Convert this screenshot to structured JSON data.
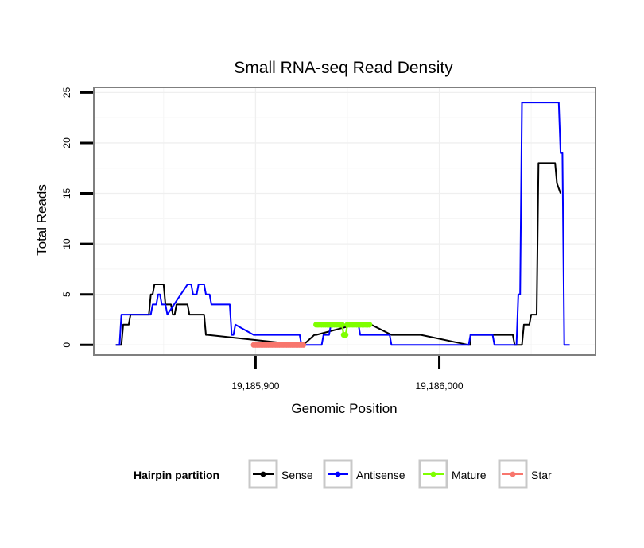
{
  "chart_data": {
    "type": "line",
    "title": "Small RNA-seq Read Density",
    "xlabel": "Genomic Position",
    "ylabel": "Total Reads",
    "xlim": [
      19185812,
      19186085
    ],
    "ylim": [
      -1,
      25.5
    ],
    "x_ticks": [
      19185900,
      19186000
    ],
    "x_tick_labels": [
      "19,185,900",
      "19,186,000"
    ],
    "y_ticks": [
      0,
      5,
      10,
      15,
      20,
      25
    ],
    "y_tick_labels": [
      "0",
      "5",
      "10",
      "15",
      "20",
      "25"
    ],
    "grid": true,
    "legend": {
      "title": "Hairpin partition",
      "position": "bottom",
      "entries": [
        "Sense",
        "Antisense",
        "Mature",
        "Star"
      ]
    },
    "series": [
      {
        "name": "Sense",
        "color": "#000000",
        "x": [
          19185824,
          19185827,
          19185828,
          19185831,
          19185832,
          19185837,
          19185838,
          19185842,
          19185843,
          19185844,
          19185845,
          19185850,
          19185851,
          19185854,
          19185855,
          19185856,
          19185857,
          19185863,
          19185864,
          19185870,
          19185871,
          19185872,
          19185873,
          19185874,
          19185925,
          19185926,
          19185932,
          19185933,
          19185954,
          19185955,
          19185962,
          19185963,
          19185974,
          19185975,
          19185989,
          19185990,
          19186016,
          19186017,
          19186017,
          19186040,
          19186041,
          19186045,
          19186046,
          19186049,
          19186050,
          19186053,
          19186054,
          19186063,
          19186064,
          19186066
        ],
        "y": [
          0,
          0,
          2,
          2,
          3,
          3,
          3,
          3,
          5,
          5,
          6,
          6,
          4,
          4,
          3,
          3,
          4,
          4,
          3,
          3,
          3,
          3,
          1,
          1,
          0,
          0,
          1,
          1,
          2,
          2,
          2,
          2,
          1,
          1,
          1,
          1,
          0,
          0,
          1,
          1,
          0,
          0,
          2,
          2,
          3,
          3,
          18,
          18,
          16,
          15
        ]
      },
      {
        "name": "Antisense",
        "color": "#0000ff",
        "x": [
          19185824,
          19185826,
          19185827,
          19185843,
          19185844,
          19185846,
          19185847,
          19185848,
          19185849,
          19185851,
          19185852,
          19185863,
          19185864,
          19185865,
          19185866,
          19185868,
          19185869,
          19185872,
          19185873,
          19185875,
          19185876,
          19185886,
          19185887,
          19185888,
          19185889,
          19185899,
          19185900,
          19185924,
          19185925,
          19185936,
          19185937,
          19185940,
          19185941,
          19185956,
          19185957,
          19185963,
          19185964,
          19185973,
          19185974,
          19186016,
          19186017,
          19186029,
          19186030,
          19186042,
          19186043,
          19186044,
          19186045,
          19186046,
          19186047,
          19186065,
          19186066,
          19186067,
          19186068,
          19186071
        ],
        "y": [
          0,
          0,
          3,
          3,
          4,
          4,
          5,
          5,
          4,
          4,
          3,
          6,
          6,
          6,
          5,
          5,
          6,
          6,
          5,
          5,
          4,
          4,
          1,
          1,
          2,
          1,
          1,
          1,
          0,
          0,
          1,
          1,
          2,
          2,
          1,
          1,
          1,
          1,
          0,
          0,
          1,
          1,
          0,
          0,
          5,
          5,
          24,
          24,
          24,
          24,
          19,
          19,
          0,
          0
        ]
      },
      {
        "name": "Mature",
        "color": "#7fff00",
        "marker": true,
        "x": [
          19185933,
          19185934,
          19185935,
          19185936,
          19185937,
          19185938,
          19185939,
          19185940,
          19185941,
          19185942,
          19185943,
          19185944,
          19185945,
          19185946,
          19185947,
          19185948,
          19185949,
          19185950,
          19185951,
          19185952,
          19185953,
          19185954,
          19185955,
          19185956,
          19185957,
          19185958,
          19185959,
          19185960,
          19185961,
          19185962
        ],
        "y": [
          2,
          2,
          2,
          2,
          2,
          2,
          2,
          2,
          2,
          2,
          2,
          2,
          2,
          2,
          2,
          1,
          1,
          2,
          2,
          2,
          2,
          2,
          2,
          2,
          2,
          2,
          2,
          2,
          2,
          2
        ]
      },
      {
        "name": "Star",
        "color": "#f8766d",
        "marker": true,
        "x": [
          19185899,
          19185900,
          19185901,
          19185902,
          19185903,
          19185904,
          19185905,
          19185906,
          19185907,
          19185908,
          19185909,
          19185910,
          19185911,
          19185912,
          19185913,
          19185914,
          19185915,
          19185916,
          19185917,
          19185918,
          19185919,
          19185920,
          19185921,
          19185922,
          19185923,
          19185924,
          19185925,
          19185926
        ],
        "y": [
          0,
          0,
          0,
          0,
          0,
          0,
          0,
          0,
          0,
          0,
          0,
          0,
          0,
          0,
          0,
          0,
          0,
          0,
          0,
          0,
          0,
          0,
          0,
          0,
          0,
          0,
          0,
          0
        ]
      }
    ]
  }
}
